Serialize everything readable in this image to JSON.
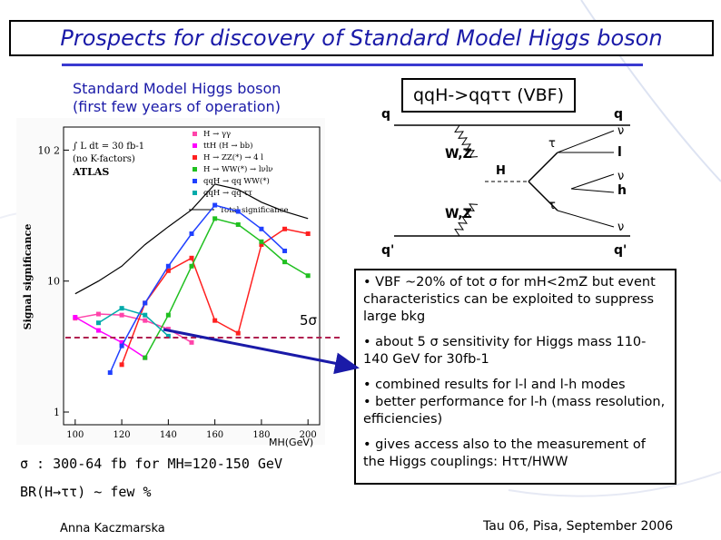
{
  "slide": {
    "title": "Prospects for discovery of Standard Model Higgs boson",
    "plot_caption_line1": "Standard Model Higgs boson",
    "plot_caption_line2": "(first few years of operation)",
    "five_sigma_label": "5σ",
    "mh_axis_label": "MH(GeV)",
    "sigma_text": "σ : 300-64 fb for MH=120-150 GeV",
    "br_text": "BR(H→ττ) ~ few %",
    "vbf_title": "qqH->qqττ  (VBF)",
    "bullets": [
      "• VBF ~20% of tot σ for mH<2mZ but event characteristics can be exploited to suppress large bkg",
      "• about 5 σ sensitivity for Higgs mass 110-140 GeV for 30fb-1",
      "• combined results for l-l and l-h modes",
      "• better performance for l-h (mass resolution, efficiencies)",
      "• gives access also to the measurement of the Higgs couplings: Hττ/HWW"
    ],
    "footer_author": "Anna Kaczmarska",
    "footer_event": "Tau 06, Pisa,  September 2006",
    "colors": {
      "title": "#1a1aa8",
      "arrow": "#1a1aa8",
      "sigma_line": "#b02050"
    }
  },
  "plot": {
    "ylabel": "Signal significance",
    "lumi_label": "∫ L dt = 30 fb-1",
    "k_factor_label": "(no K-factors)",
    "experiment_label": "ATLAS",
    "y_ticks": [
      "10 2",
      "10",
      "1"
    ],
    "x_ticks": [
      "100",
      "120",
      "140",
      "160",
      "180",
      "200"
    ],
    "legend": [
      {
        "label": "H → γγ",
        "color": "#ff44aa"
      },
      {
        "label": "ttH (H → bb)",
        "color": "#ff00ff"
      },
      {
        "label": "H → ZZ(*) → 4 l",
        "color": "#ff2020"
      },
      {
        "label": "H → WW(*) → lνlν",
        "color": "#20c020"
      },
      {
        "label": "qqH → qq WW(*)",
        "color": "#2040ff"
      },
      {
        "label": "qqH → qq ττ",
        "color": "#00aaaa"
      },
      {
        "label": "Total significance",
        "color": "#000000"
      }
    ]
  },
  "chart_data": {
    "type": "line",
    "xlabel": "MH(GeV)",
    "ylabel": "Signal significance",
    "ylog": true,
    "xlim": [
      95,
      205
    ],
    "ylim": [
      0.8,
      150
    ],
    "series": [
      {
        "name": "H → γγ",
        "color": "#ff44aa",
        "x": [
          100,
          110,
          120,
          130,
          140,
          150
        ],
        "y": [
          5.2,
          5.6,
          5.5,
          5.0,
          4.3,
          3.4
        ]
      },
      {
        "name": "ttH (H → bb)",
        "color": "#ff00ff",
        "x": [
          100,
          110,
          120,
          130
        ],
        "y": [
          5.3,
          4.2,
          3.4,
          2.6
        ]
      },
      {
        "name": "H → ZZ(*) → 4 l",
        "color": "#ff2020",
        "x": [
          120,
          130,
          140,
          150,
          160,
          170,
          180,
          190,
          200
        ],
        "y": [
          2.3,
          6.8,
          12,
          15,
          5,
          4,
          19,
          25,
          23
        ]
      },
      {
        "name": "H → WW(*) → lνlν",
        "color": "#20c020",
        "x": [
          130,
          140,
          150,
          160,
          170,
          180,
          190,
          200
        ],
        "y": [
          2.6,
          5.5,
          13,
          30,
          27,
          20,
          14,
          11
        ]
      },
      {
        "name": "qqH → qq WW(*)",
        "color": "#2040ff",
        "x": [
          115,
          120,
          130,
          140,
          150,
          160,
          170,
          180,
          190
        ],
        "y": [
          2.0,
          3.2,
          6.8,
          13,
          23,
          38,
          34,
          25,
          17
        ]
      },
      {
        "name": "qqH → qq ττ",
        "color": "#00aaaa",
        "x": [
          110,
          120,
          130,
          140
        ],
        "y": [
          4.8,
          6.2,
          5.5,
          3.8
        ]
      },
      {
        "name": "Total significance",
        "color": "#000000",
        "x": [
          100,
          110,
          120,
          130,
          140,
          150,
          160,
          170,
          180,
          190,
          200
        ],
        "y": [
          8,
          10,
          13,
          19,
          26,
          35,
          55,
          50,
          40,
          34,
          30
        ]
      }
    ]
  }
}
